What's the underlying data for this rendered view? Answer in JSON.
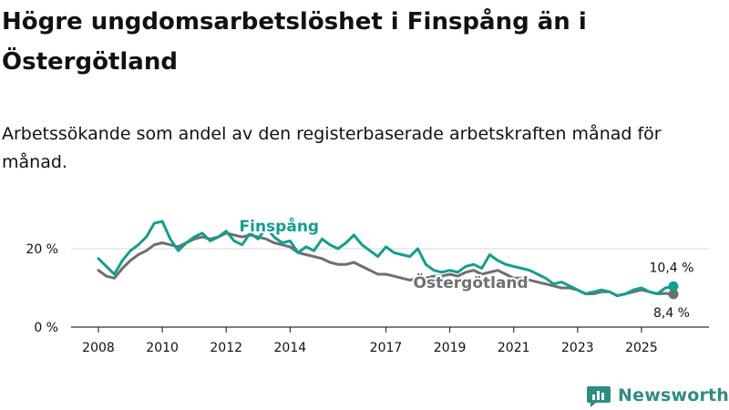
{
  "title": "Högre ungdomsarbetslöshet i Finspång än i Östergötland",
  "subtitle": "Arbetssökande som andel av den registerbaserade arbetskraften månad för månad.",
  "brand": {
    "name": "Newsworthy",
    "icon": "newsworthy-bar-chart-icon",
    "color": "#2f8c83"
  },
  "colors": {
    "finspang": "#139e8f",
    "ostergotland": "#6f6f73",
    "axis": "#333333",
    "grid": "#d9d9d9",
    "text": "#111111"
  },
  "chart_data": {
    "type": "line",
    "title": "Högre ungdomsarbetslöshet i Finspång än i Östergötland",
    "xlabel": "",
    "ylabel": "",
    "xlim": [
      2008,
      2026.2
    ],
    "ylim": [
      0,
      30
    ],
    "grid": true,
    "y_ticks": [
      {
        "value": 0,
        "label": "0 %"
      },
      {
        "value": 20,
        "label": "20 %"
      }
    ],
    "x_ticks": [
      {
        "value": 2008,
        "label": "2008"
      },
      {
        "value": 2010,
        "label": "2010"
      },
      {
        "value": 2012,
        "label": "2012"
      },
      {
        "value": 2014,
        "label": "2014"
      },
      {
        "value": 2017,
        "label": "2017"
      },
      {
        "value": 2019,
        "label": "2019"
      },
      {
        "value": 2021,
        "label": "2021"
      },
      {
        "value": 2023,
        "label": "2023"
      },
      {
        "value": 2025,
        "label": "2025"
      }
    ],
    "series": [
      {
        "name": "Finspång",
        "label": "Finspång",
        "x": [
          2008.0,
          2008.25,
          2008.5,
          2008.75,
          2009.0,
          2009.25,
          2009.5,
          2009.75,
          2010.0,
          2010.25,
          2010.5,
          2010.75,
          2011.0,
          2011.25,
          2011.5,
          2011.75,
          2012.0,
          2012.25,
          2012.5,
          2012.75,
          2013.0,
          2013.25,
          2013.5,
          2013.75,
          2014.0,
          2014.25,
          2014.5,
          2014.75,
          2015.0,
          2015.25,
          2015.5,
          2015.75,
          2016.0,
          2016.25,
          2016.5,
          2016.75,
          2017.0,
          2017.25,
          2017.5,
          2017.75,
          2018.0,
          2018.25,
          2018.5,
          2018.75,
          2019.0,
          2019.25,
          2019.5,
          2019.75,
          2020.0,
          2020.25,
          2020.5,
          2020.75,
          2021.0,
          2021.25,
          2021.5,
          2021.75,
          2022.0,
          2022.25,
          2022.5,
          2022.75,
          2023.0,
          2023.25,
          2023.5,
          2023.75,
          2024.0,
          2024.25,
          2024.5,
          2024.75,
          2025.0,
          2025.25,
          2025.5,
          2025.75,
          2026.0
        ],
        "values": [
          17.5,
          15.5,
          13.5,
          17.0,
          19.5,
          21.0,
          23.0,
          26.5,
          27.0,
          22.5,
          19.5,
          21.5,
          23.0,
          24.0,
          22.0,
          23.0,
          24.5,
          22.0,
          21.0,
          24.0,
          22.5,
          25.5,
          23.0,
          21.5,
          22.0,
          19.0,
          20.5,
          19.5,
          22.5,
          21.0,
          20.0,
          21.5,
          23.5,
          21.0,
          19.5,
          18.0,
          20.5,
          19.0,
          18.5,
          18.0,
          20.0,
          16.0,
          14.5,
          14.0,
          14.5,
          14.0,
          15.5,
          16.0,
          15.0,
          18.5,
          17.0,
          16.0,
          15.5,
          15.0,
          14.5,
          13.5,
          12.5,
          11.0,
          11.5,
          10.5,
          9.5,
          8.5,
          9.0,
          9.5,
          9.0,
          8.0,
          8.5,
          9.5,
          10.0,
          9.0,
          8.5,
          10.0,
          10.4
        ]
      },
      {
        "name": "Östergötland",
        "label": "Östergötland",
        "x": [
          2008.0,
          2008.25,
          2008.5,
          2008.75,
          2009.0,
          2009.25,
          2009.5,
          2009.75,
          2010.0,
          2010.25,
          2010.5,
          2010.75,
          2011.0,
          2011.25,
          2011.5,
          2011.75,
          2012.0,
          2012.25,
          2012.5,
          2012.75,
          2013.0,
          2013.25,
          2013.5,
          2013.75,
          2014.0,
          2014.25,
          2014.5,
          2014.75,
          2015.0,
          2015.25,
          2015.5,
          2015.75,
          2016.0,
          2016.25,
          2016.5,
          2016.75,
          2017.0,
          2017.25,
          2017.5,
          2017.75,
          2018.0,
          2018.25,
          2018.5,
          2018.75,
          2019.0,
          2019.25,
          2019.5,
          2019.75,
          2020.0,
          2020.25,
          2020.5,
          2020.75,
          2021.0,
          2021.25,
          2021.5,
          2021.75,
          2022.0,
          2022.25,
          2022.5,
          2022.75,
          2023.0,
          2023.25,
          2023.5,
          2023.75,
          2024.0,
          2024.25,
          2024.5,
          2024.75,
          2025.0,
          2025.25,
          2025.5,
          2025.75,
          2026.0
        ],
        "values": [
          14.5,
          13.0,
          12.5,
          15.0,
          17.0,
          18.5,
          19.5,
          21.0,
          21.5,
          21.0,
          20.5,
          21.5,
          22.5,
          23.0,
          22.5,
          23.0,
          24.0,
          23.5,
          23.0,
          23.5,
          23.0,
          22.5,
          21.5,
          21.0,
          20.5,
          19.0,
          18.5,
          18.0,
          17.5,
          16.5,
          16.0,
          16.0,
          16.5,
          15.5,
          14.5,
          13.5,
          13.5,
          13.0,
          12.5,
          12.0,
          12.5,
          12.5,
          13.0,
          13.0,
          13.5,
          13.0,
          14.0,
          14.5,
          13.5,
          14.0,
          14.5,
          13.5,
          12.5,
          12.5,
          12.0,
          11.5,
          11.0,
          10.5,
          10.0,
          10.0,
          9.5,
          8.5,
          8.5,
          9.0,
          9.0,
          8.0,
          8.5,
          9.0,
          9.5,
          9.0,
          8.5,
          8.6,
          8.4
        ]
      }
    ],
    "annotations": [
      {
        "text": "Finspång",
        "series": "Finspång",
        "x": 2013.6,
        "y": 23.5
      },
      {
        "text": "Östergötland",
        "series": "Östergötland",
        "x": 2019.6,
        "y": 10.5
      },
      {
        "text": "10,4 %",
        "series": "Finspång",
        "x": 2026.0,
        "y": 10.4
      },
      {
        "text": "8,4 %",
        "series": "Östergötland",
        "x": 2026.0,
        "y": 8.4
      }
    ]
  }
}
